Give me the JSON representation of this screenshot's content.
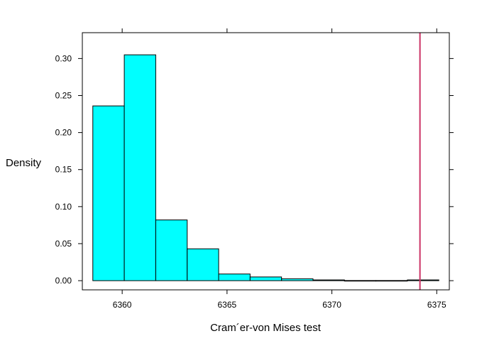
{
  "chart_data": {
    "type": "bar",
    "title": "",
    "xlabel": "Cram´er-von Mises test",
    "ylabel": "Density",
    "xlim": [
      6358.1,
      6375.6
    ],
    "ylim": [
      -0.0124,
      0.3349
    ],
    "x_ticks": [
      6360,
      6365,
      6370,
      6375
    ],
    "x_tick_labels": [
      "6360",
      "6365",
      "6370",
      "6375"
    ],
    "y_ticks": [
      0.0,
      0.05,
      0.1,
      0.15,
      0.2,
      0.25,
      0.3
    ],
    "y_tick_labels": [
      "0.00",
      "0.05",
      "0.10",
      "0.15",
      "0.20",
      "0.25",
      "0.30"
    ],
    "bins": [
      {
        "start": 6358.6,
        "end": 6360.1,
        "density": 0.236
      },
      {
        "start": 6360.1,
        "end": 6361.6,
        "density": 0.305
      },
      {
        "start": 6361.6,
        "end": 6363.1,
        "density": 0.082
      },
      {
        "start": 6363.1,
        "end": 6364.6,
        "density": 0.043
      },
      {
        "start": 6364.6,
        "end": 6366.1,
        "density": 0.009
      },
      {
        "start": 6366.1,
        "end": 6367.6,
        "density": 0.005
      },
      {
        "start": 6367.6,
        "end": 6369.1,
        "density": 0.0025
      },
      {
        "start": 6369.1,
        "end": 6370.6,
        "density": 0.001
      },
      {
        "start": 6370.6,
        "end": 6372.1,
        "density": 0.0002
      },
      {
        "start": 6372.1,
        "end": 6373.6,
        "density": 0.0002
      },
      {
        "start": 6373.6,
        "end": 6375.1,
        "density": 0.001
      }
    ],
    "reference_line_x": 6374.2,
    "colors": {
      "bar_fill": "#00ffff",
      "bar_stroke": "#000000",
      "reference_line": "#cc3366",
      "axis": "#000000"
    }
  }
}
